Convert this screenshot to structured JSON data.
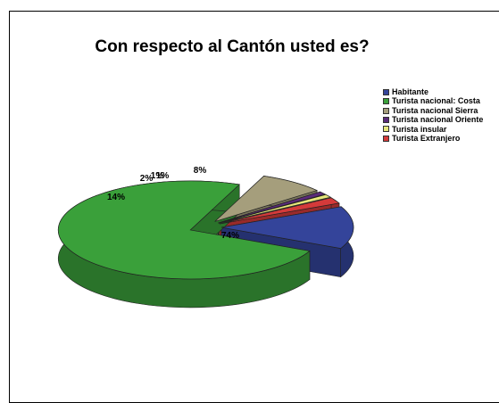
{
  "chart_data": {
    "type": "pie",
    "title": "Con respecto al Cantón usted es?",
    "categories": [
      "Habitante",
      "Turista nacional: Costa",
      "Turista nacional Sierra",
      "Turista nacional Oriente",
      "Turista insular",
      "Turista Extranjero"
    ],
    "values": [
      14,
      74,
      8,
      1,
      1,
      2
    ],
    "data_labels": [
      "14%",
      "74%",
      "8%",
      "1%",
      "1%",
      "2%"
    ],
    "colors": [
      "#34449a",
      "#3aa03a",
      "#a59e7c",
      "#5a2a7a",
      "#e6e67a",
      "#d43a3a"
    ],
    "legend_position": "right",
    "style": "3d-exploded"
  }
}
